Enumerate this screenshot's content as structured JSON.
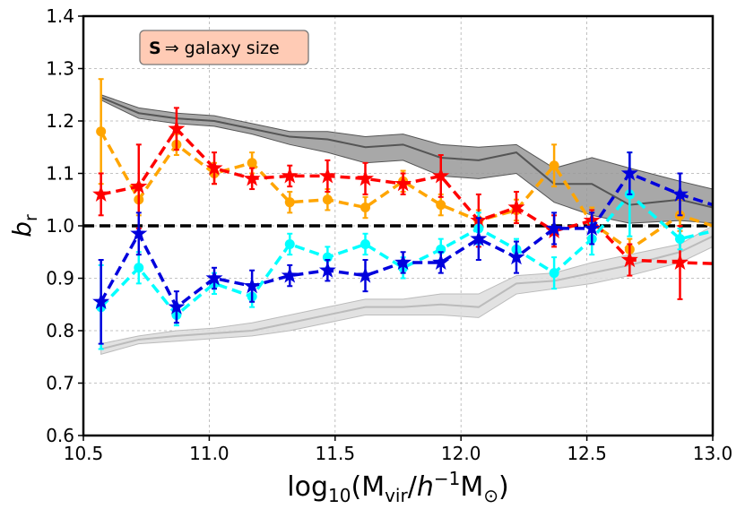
{
  "chart_data": {
    "type": "line",
    "title": "",
    "annotation": {
      "bold": "S",
      "arrow": "⇒",
      "text": " galaxy size"
    },
    "xlabel": {
      "prefix": "log",
      "sub": "10",
      "open": "(M",
      "vir": "vir",
      "slash": "/",
      "h": "h",
      "exp": "−1",
      "m": "M",
      "sun": "⊙",
      "close": ")"
    },
    "ylabel": {
      "main": "b",
      "sub": "r"
    },
    "xlim": [
      10.5,
      13.0
    ],
    "ylim": [
      0.6,
      1.4
    ],
    "xticks": [
      10.5,
      11.0,
      11.5,
      12.0,
      12.5,
      13.0
    ],
    "xtick_labels": [
      "10.5",
      "11.0",
      "11.5",
      "12.0",
      "12.5",
      "13.0"
    ],
    "yticks": [
      0.6,
      0.7,
      0.8,
      0.9,
      1.0,
      1.1,
      1.2,
      1.3,
      1.4
    ],
    "ytick_labels": [
      "0.6",
      "0.7",
      "0.8",
      "0.9",
      "1.0",
      "1.1",
      "1.2",
      "1.3",
      "1.4"
    ],
    "grid": true,
    "reference_line": {
      "y": 1.0,
      "color": "#000000"
    },
    "bands": [
      {
        "name": "dark-gray-band",
        "color": "#555555",
        "fill": "#999999",
        "x": [
          10.57,
          10.72,
          10.87,
          11.02,
          11.17,
          11.32,
          11.47,
          11.62,
          11.77,
          11.92,
          12.07,
          12.22,
          12.37,
          12.52,
          12.67,
          12.87,
          13.0
        ],
        "y": [
          1.245,
          1.215,
          1.205,
          1.2,
          1.185,
          1.17,
          1.165,
          1.15,
          1.155,
          1.13,
          1.125,
          1.14,
          1.08,
          1.08,
          1.04,
          1.05,
          1.035
        ],
        "lower": [
          1.24,
          1.205,
          1.195,
          1.19,
          1.175,
          1.155,
          1.14,
          1.12,
          1.125,
          1.095,
          1.09,
          1.1,
          1.045,
          1.02,
          1.005,
          1.01,
          1.005
        ],
        "upper": [
          1.25,
          1.225,
          1.215,
          1.21,
          1.195,
          1.18,
          1.18,
          1.17,
          1.175,
          1.155,
          1.15,
          1.155,
          1.11,
          1.13,
          1.11,
          1.085,
          1.07
        ]
      },
      {
        "name": "light-gray-band",
        "color": "#bbbbbb",
        "fill": "#dddddd",
        "x": [
          10.57,
          10.72,
          10.87,
          11.02,
          11.17,
          11.32,
          11.47,
          11.62,
          11.77,
          11.92,
          12.07,
          12.22,
          12.37,
          12.52,
          12.67,
          12.87,
          13.0
        ],
        "y": [
          0.765,
          0.783,
          0.79,
          0.795,
          0.8,
          0.815,
          0.83,
          0.845,
          0.845,
          0.85,
          0.845,
          0.89,
          0.895,
          0.91,
          0.925,
          0.95,
          0.98
        ],
        "lower": [
          0.755,
          0.775,
          0.78,
          0.785,
          0.79,
          0.8,
          0.815,
          0.83,
          0.83,
          0.83,
          0.825,
          0.87,
          0.88,
          0.89,
          0.905,
          0.93,
          0.96
        ],
        "upper": [
          0.775,
          0.79,
          0.8,
          0.805,
          0.815,
          0.83,
          0.845,
          0.86,
          0.86,
          0.87,
          0.87,
          0.905,
          0.91,
          0.93,
          0.945,
          0.965,
          1.0
        ]
      }
    ],
    "series": [
      {
        "name": "orange",
        "color": "#FFA500",
        "marker": "circle",
        "x": [
          10.57,
          10.72,
          10.87,
          11.02,
          11.17,
          11.32,
          11.47,
          11.62,
          11.77,
          11.92,
          12.07,
          12.22,
          12.37,
          12.52,
          12.67,
          12.87,
          13.0
        ],
        "y": [
          1.18,
          1.05,
          1.155,
          1.1,
          1.12,
          1.045,
          1.05,
          1.035,
          1.085,
          1.04,
          1.01,
          1.03,
          1.115,
          1.005,
          0.955,
          1.02,
          1.0
        ],
        "err": [
          0.1,
          0.03,
          0.02,
          0.02,
          0.02,
          0.02,
          0.02,
          0.02,
          0.02,
          0.02,
          0.02,
          0.02,
          0.04,
          0.03,
          0.02,
          0.03,
          0.0
        ]
      },
      {
        "name": "red",
        "color": "#FF0000",
        "marker": "star",
        "x": [
          10.57,
          10.72,
          10.87,
          11.02,
          11.17,
          11.32,
          11.47,
          11.62,
          11.77,
          11.92,
          12.07,
          12.22,
          12.37,
          12.52,
          12.67,
          12.87,
          13.0
        ],
        "y": [
          1.06,
          1.075,
          1.185,
          1.11,
          1.09,
          1.095,
          1.095,
          1.09,
          1.08,
          1.095,
          1.01,
          1.035,
          0.99,
          1.01,
          0.935,
          0.93,
          0.928
        ],
        "err": [
          0.04,
          0.08,
          0.04,
          0.03,
          0.02,
          0.02,
          0.03,
          0.03,
          0.02,
          0.04,
          0.05,
          0.03,
          0.03,
          0.02,
          0.03,
          0.07,
          0.0
        ]
      },
      {
        "name": "cyan",
        "color": "#00FFFF",
        "marker": "circle",
        "x": [
          10.57,
          10.72,
          10.87,
          11.02,
          11.17,
          11.32,
          11.47,
          11.62,
          11.77,
          11.92,
          12.07,
          12.22,
          12.37,
          12.52,
          12.67,
          12.87,
          13.0
        ],
        "y": [
          0.845,
          0.92,
          0.83,
          0.89,
          0.865,
          0.965,
          0.94,
          0.965,
          0.92,
          0.955,
          0.995,
          0.955,
          0.91,
          0.975,
          1.06,
          0.975,
          0.99
        ],
        "err": [
          0.08,
          0.03,
          0.02,
          0.02,
          0.02,
          0.02,
          0.02,
          0.02,
          0.02,
          0.02,
          0.03,
          0.02,
          0.03,
          0.03,
          0.08,
          0.02,
          0.0
        ]
      },
      {
        "name": "blue",
        "color": "#0000DD",
        "marker": "star",
        "x": [
          10.57,
          10.72,
          10.87,
          11.02,
          11.17,
          11.32,
          11.47,
          11.62,
          11.77,
          11.92,
          12.07,
          12.22,
          12.37,
          12.52,
          12.67,
          12.87,
          13.0
        ],
        "y": [
          0.855,
          0.985,
          0.845,
          0.9,
          0.885,
          0.905,
          0.915,
          0.905,
          0.93,
          0.93,
          0.975,
          0.94,
          0.995,
          0.995,
          1.1,
          1.06,
          1.04
        ],
        "err": [
          0.08,
          0.04,
          0.03,
          0.02,
          0.03,
          0.02,
          0.02,
          0.03,
          0.02,
          0.02,
          0.04,
          0.03,
          0.03,
          0.03,
          0.04,
          0.04,
          0.0
        ]
      }
    ]
  }
}
